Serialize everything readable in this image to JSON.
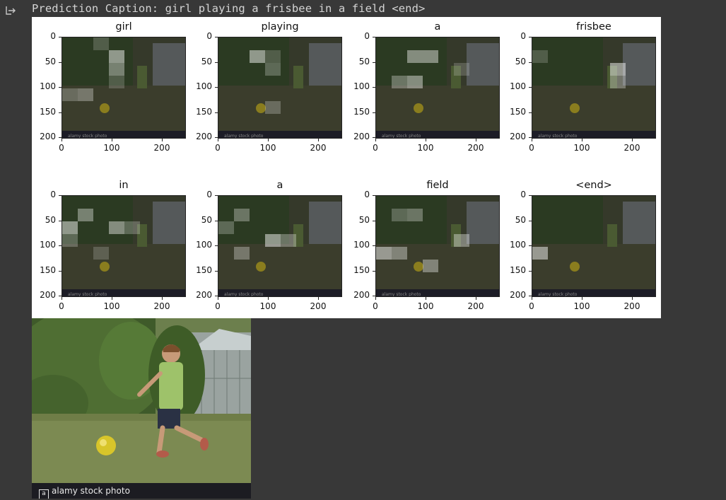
{
  "output": {
    "icon": "output-arrow-icon",
    "caption": "Prediction Caption: girl playing a frisbee in a field <end>"
  },
  "axes": {
    "yticks": [
      "0",
      "50",
      "100",
      "150",
      "200"
    ],
    "xticks": [
      "0",
      "100",
      "200"
    ]
  },
  "panels": [
    {
      "word": "girl"
    },
    {
      "word": "playing"
    },
    {
      "word": "a"
    },
    {
      "word": "frisbee"
    },
    {
      "word": "in"
    },
    {
      "word": "a"
    },
    {
      "word": "field"
    },
    {
      "word": "<end>"
    }
  ],
  "photo": {
    "watermark": "alamy stock photo"
  }
}
